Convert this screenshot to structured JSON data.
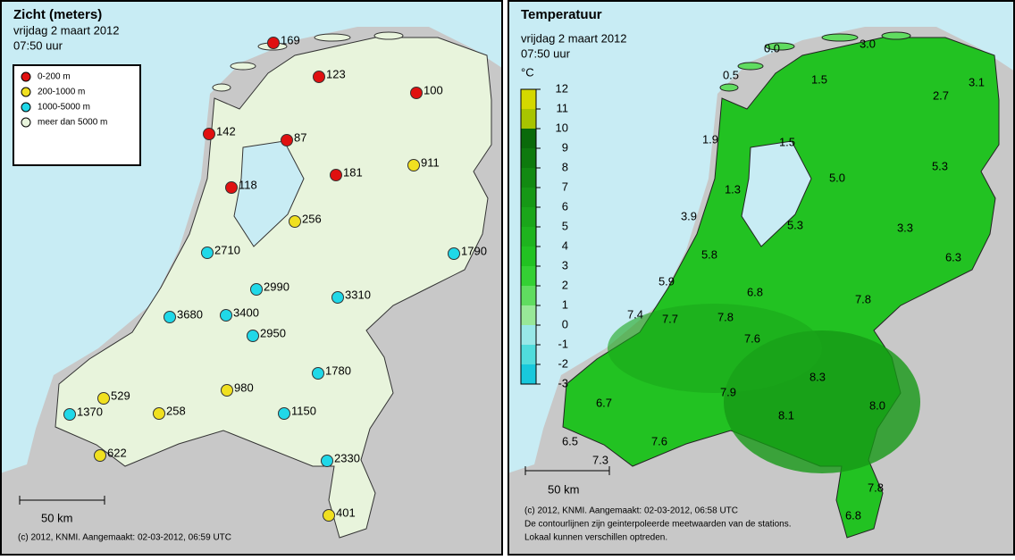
{
  "left": {
    "title": "Zicht (meters)",
    "date": "vrijdag 2 maart 2012",
    "time": "07:50 uur",
    "legend": [
      {
        "label": "0-200 m",
        "color": "#e01010"
      },
      {
        "label": "200-1000 m",
        "color": "#f0e020"
      },
      {
        "label": "1000-5000 m",
        "color": "#20d8e8"
      },
      {
        "label": "meer dan 5000 m",
        "color": "#e8f4dc"
      }
    ],
    "stations": [
      {
        "value": 169,
        "color": "#e01010"
      },
      {
        "value": 123,
        "color": "#e01010"
      },
      {
        "value": 100,
        "color": "#e01010"
      },
      {
        "value": 142,
        "color": "#e01010"
      },
      {
        "value": 87,
        "color": "#e01010"
      },
      {
        "value": 181,
        "color": "#e01010"
      },
      {
        "value": 911,
        "color": "#f0e020"
      },
      {
        "value": 118,
        "color": "#e01010"
      },
      {
        "value": 256,
        "color": "#f0e020"
      },
      {
        "value": 2710,
        "color": "#20d8e8"
      },
      {
        "value": 1790,
        "color": "#20d8e8"
      },
      {
        "value": 2990,
        "color": "#20d8e8"
      },
      {
        "value": 3310,
        "color": "#20d8e8"
      },
      {
        "value": 3680,
        "color": "#20d8e8"
      },
      {
        "value": 3400,
        "color": "#20d8e8"
      },
      {
        "value": 2950,
        "color": "#20d8e8"
      },
      {
        "value": 1780,
        "color": "#20d8e8"
      },
      {
        "value": 529,
        "color": "#f0e020"
      },
      {
        "value": 980,
        "color": "#f0e020"
      },
      {
        "value": 1370,
        "color": "#20d8e8"
      },
      {
        "value": 258,
        "color": "#f0e020"
      },
      {
        "value": 1150,
        "color": "#20d8e8"
      },
      {
        "value": 622,
        "color": "#f0e020"
      },
      {
        "value": 2330,
        "color": "#20d8e8"
      },
      {
        "value": 401,
        "color": "#f0e020"
      }
    ],
    "scale": "50 km",
    "credit": "(c) 2012, KNMI. Aangemaakt: 02-03-2012, 06:59 UTC"
  },
  "right": {
    "title": "Temperatuur",
    "date": "vrijdag 2 maart 2012",
    "time": "07:50 uur",
    "unit": "°C",
    "colorbar": {
      "ticks": [
        12,
        11,
        10,
        9,
        8,
        7,
        6,
        5,
        4,
        3,
        2,
        1,
        0,
        -1,
        -2,
        -3
      ],
      "colors": [
        "#d4d800",
        "#a8c400",
        "#0a6a0a",
        "#0e7a0e",
        "#128a12",
        "#169816",
        "#1aa61a",
        "#1eb41e",
        "#22c222",
        "#34d034",
        "#60dc60",
        "#98e898",
        "#98e8e8",
        "#50dcdc",
        "#18c8dc"
      ]
    },
    "stations": [
      "0.0",
      "3.0",
      "0.5",
      "1.5",
      "2.7",
      "3.1",
      "1.9",
      "1.5",
      "1.3",
      "5.0",
      "5.3",
      "3.9",
      "5.3",
      "3.3",
      "5.8",
      "6.3",
      "5.9",
      "6.8",
      "7.8",
      "7.4",
      "7.7",
      "7.8",
      "7.6",
      "8.3",
      "7.9",
      "6.7",
      "8.0",
      "6.5",
      "7.6",
      "8.1",
      "7.3",
      "7.8",
      "6.8"
    ],
    "scale": "50 km",
    "credit": [
      "(c) 2012, KNMI. Aangemaakt: 02-03-2012, 06:58 UTC",
      "De contourlijnen zijn geinterpoleerde meetwaarden van de stations.",
      "Lokaal kunnen verschillen optreden."
    ]
  }
}
